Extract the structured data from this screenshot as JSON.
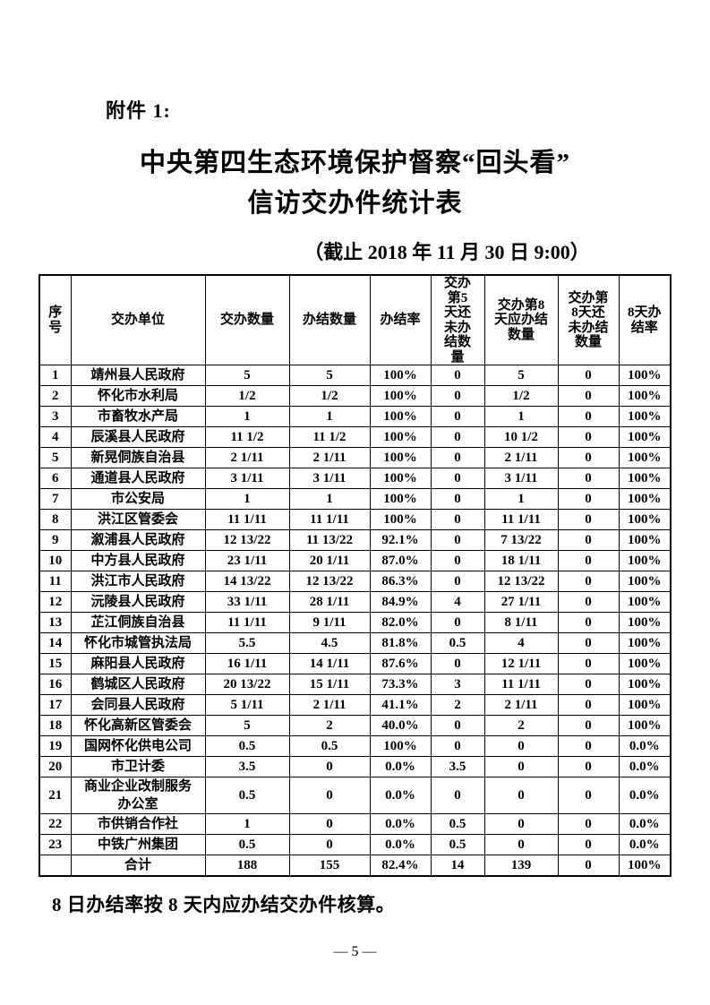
{
  "page": {
    "attachment_label": "附件 1:",
    "title_line1": "中央第四生态环境保护督察“回头看”",
    "title_line2": "信访交办件统计表",
    "subtitle": "（截止 2018 年 11 月 30 日 9:00）",
    "footnote": "8 日办结率按 8 天内应办结交办件核算。",
    "page_number": "— 5 —"
  },
  "table": {
    "headers": [
      "序\n号",
      "交办单位",
      "交办数量",
      "办结数量",
      "办结率",
      "交办\n第5\n天还\n未办\n结数\n量",
      "交办第8\n天应办结\n数量",
      "交办第\n8天还\n未办结\n数量",
      "8天办\n结率"
    ],
    "rows": [
      [
        "1",
        "靖州县人民政府",
        "5",
        "5",
        "100%",
        "0",
        "5",
        "0",
        "100%"
      ],
      [
        "2",
        "怀化市水利局",
        "1/2",
        "1/2",
        "100%",
        "0",
        "1/2",
        "0",
        "100%"
      ],
      [
        "3",
        "市畜牧水产局",
        "1",
        "1",
        "100%",
        "0",
        "1",
        "0",
        "100%"
      ],
      [
        "4",
        "辰溪县人民政府",
        "11 1/2",
        "11 1/2",
        "100%",
        "0",
        "10 1/2",
        "0",
        "100%"
      ],
      [
        "5",
        "新晃侗族自治县",
        "2 1/11",
        "2 1/11",
        "100%",
        "0",
        "2 1/11",
        "0",
        "100%"
      ],
      [
        "6",
        "通道县人民政府",
        "3 1/11",
        "3 1/11",
        "100%",
        "0",
        "3 1/11",
        "0",
        "100%"
      ],
      [
        "7",
        "市公安局",
        "1",
        "1",
        "100%",
        "0",
        "1",
        "0",
        "100%"
      ],
      [
        "8",
        "洪江区管委会",
        "11 1/11",
        "11 1/11",
        "100%",
        "0",
        "11 1/11",
        "0",
        "100%"
      ],
      [
        "9",
        "溆浦县人民政府",
        "12 13/22",
        "11 13/22",
        "92.1%",
        "0",
        "7 13/22",
        "0",
        "100%"
      ],
      [
        "10",
        "中方县人民政府",
        "23 1/11",
        "20 1/11",
        "87.0%",
        "0",
        "18 1/11",
        "0",
        "100%"
      ],
      [
        "11",
        "洪江市人民政府",
        "14 13/22",
        "12 13/22",
        "86.3%",
        "0",
        "12 13/22",
        "0",
        "100%"
      ],
      [
        "12",
        "沅陵县人民政府",
        "33 1/11",
        "28 1/11",
        "84.9%",
        "4",
        "27 1/11",
        "0",
        "100%"
      ],
      [
        "13",
        "芷江侗族自治县",
        "11 1/11",
        "9 1/11",
        "82.0%",
        "0",
        "8 1/11",
        "0",
        "100%"
      ],
      [
        "14",
        "怀化市城管执法局",
        "5.5",
        "4.5",
        "81.8%",
        "0.5",
        "4",
        "0",
        "100%"
      ],
      [
        "15",
        "麻阳县人民政府",
        "16 1/11",
        "14 1/11",
        "87.6%",
        "0",
        "12 1/11",
        "0",
        "100%"
      ],
      [
        "16",
        "鹤城区人民政府",
        "20 13/22",
        "15 1/11",
        "73.3%",
        "3",
        "11 1/11",
        "0",
        "100%"
      ],
      [
        "17",
        "会同县人民政府",
        "5 1/11",
        "2 1/11",
        "41.1%",
        "2",
        "2 1/11",
        "0",
        "100%"
      ],
      [
        "18",
        "怀化高新区管委会",
        "5",
        "2",
        "40.0%",
        "0",
        "2",
        "0",
        "100%"
      ],
      [
        "19",
        "国网怀化供电公司",
        "0.5",
        "0.5",
        "100%",
        "0",
        "0",
        "0",
        "0.0%"
      ],
      [
        "20",
        "市卫计委",
        "3.5",
        "0",
        "0.0%",
        "3.5",
        "0",
        "0",
        "0.0%"
      ],
      [
        "21",
        "商业企业改制服务\n办公室",
        "0.5",
        "0",
        "0.0%",
        "0",
        "0",
        "0",
        "0.0%"
      ],
      [
        "22",
        "市供销合作社",
        "1",
        "0",
        "0.0%",
        "0.5",
        "0",
        "0",
        "0.0%"
      ],
      [
        "23",
        "中铁广州集团",
        "0.5",
        "0",
        "0.0%",
        "0.5",
        "0",
        "0",
        "0.0%"
      ],
      [
        "",
        "合计",
        "188",
        "155",
        "82.4%",
        "14",
        "139",
        "0",
        "100%"
      ]
    ]
  }
}
